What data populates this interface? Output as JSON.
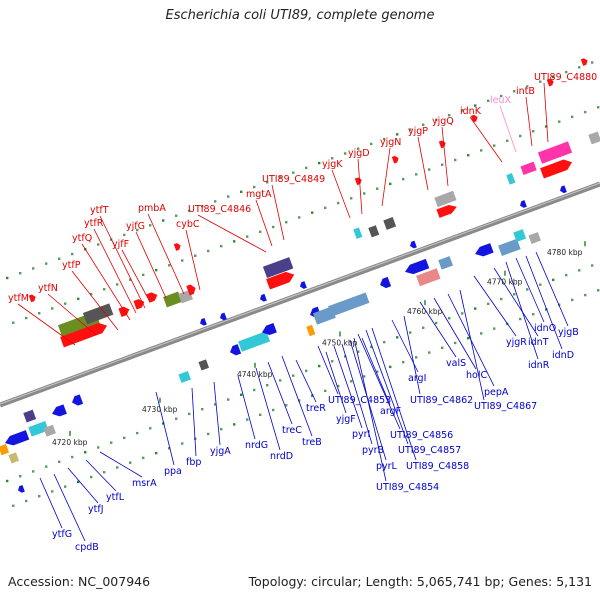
{
  "title": "Escherichia coli UTI89, complete genome",
  "footer": {
    "accession": "Accession: NC_007946",
    "stats": "Topology: circular; Length: 5,065,741 bp; Genes: 5,131"
  },
  "colors": {
    "upper_label": "#e00000",
    "lower_label": "#0000cc",
    "leux_label": "#ff88cc",
    "backbone": "#8a8a8a"
  },
  "ticks": [
    "4720 kbp",
    "4730 kbp",
    "4740 kbp",
    "4750 kbp",
    "4760 kbp",
    "4770 kbp",
    "4780 kbp"
  ],
  "upper_labels": [
    "ytfM",
    "ytfN",
    "ytfP",
    "ytfQ",
    "ytfR",
    "ytfT",
    "yjfF",
    "yjfG",
    "pmbA",
    "cybC",
    "UTI89_C4846",
    "mgtA",
    "UTI89_C4849",
    "yjgK",
    "yjgD",
    "yjgN",
    "yjgP",
    "yjgQ",
    "idnK",
    "leuX",
    "intB",
    "UTI89_C4880"
  ],
  "lower_labels": [
    "ytfG",
    "cpdB",
    "ytfJ",
    "ytfL",
    "msrA",
    "ppa",
    "fbp",
    "yjgA",
    "nrdG",
    "nrdD",
    "treC",
    "treB",
    "treR",
    "UTI89_C4853",
    "yjgF",
    "pyrI",
    "pyrB",
    "pyrL",
    "UTI89_C4854",
    "UTI89_C4856",
    "UTI89_C4857",
    "UTI89_C4858",
    "argF",
    "argI",
    "UTI89_C4862",
    "valS",
    "holC",
    "pepA",
    "UTI89_C4867",
    "yjgR",
    "idnT",
    "idnR",
    "idnO",
    "idnD",
    "yjgB"
  ]
}
